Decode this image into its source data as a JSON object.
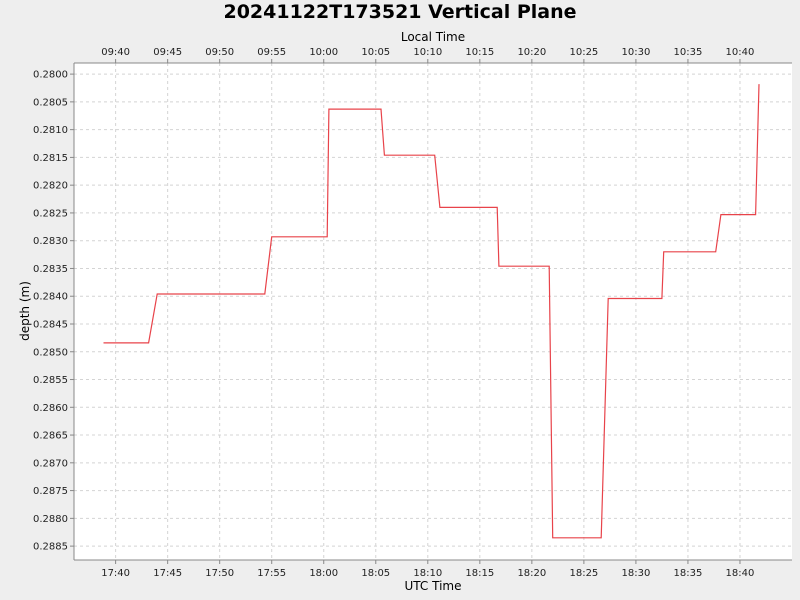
{
  "chart_data": {
    "type": "line",
    "title": "20241122T173521 Vertical Plane",
    "xlabel": "UTC Time",
    "x2label": "Local Time",
    "ylabel": "depth (m)",
    "y_inverted": true,
    "ylim": [
      0.2798,
      0.28875
    ],
    "xlim": [
      "17:36",
      "18:45"
    ],
    "x_ticks": [
      "17:40",
      "17:45",
      "17:50",
      "17:55",
      "18:00",
      "18:05",
      "18:10",
      "18:15",
      "18:20",
      "18:25",
      "18:30",
      "18:35",
      "18:40"
    ],
    "x2_ticks": [
      "09:40",
      "09:45",
      "09:50",
      "09:55",
      "10:00",
      "10:05",
      "10:10",
      "10:15",
      "10:20",
      "10:25",
      "10:30",
      "10:35",
      "10:40"
    ],
    "y_ticks": [
      "0.2800",
      "0.2805",
      "0.2810",
      "0.2815",
      "0.2820",
      "0.2825",
      "0.2830",
      "0.2835",
      "0.2840",
      "0.2845",
      "0.2850",
      "0.2855",
      "0.2860",
      "0.2865",
      "0.2870",
      "0.2875",
      "0.2880",
      "0.2885"
    ],
    "grid": true,
    "series": [
      {
        "color": "#e8434a",
        "x": [
          "17:38:50",
          "17:43:10",
          "17:44:00",
          "17:54:20",
          "17:55:00",
          "18:00:20",
          "18:00:30",
          "18:05:30",
          "18:05:50",
          "18:10:40",
          "18:11:10",
          "18:16:40",
          "18:16:50",
          "18:21:40",
          "18:22:00",
          "18:26:40",
          "18:27:20",
          "18:32:30",
          "18:32:40",
          "18:37:40",
          "18:38:10",
          "18:41:30",
          "18:41:50"
        ],
        "y": [
          0.28484,
          0.28484,
          0.28396,
          0.28396,
          0.28293,
          0.28293,
          0.28063,
          0.28063,
          0.28146,
          0.28146,
          0.2824,
          0.2824,
          0.28346,
          0.28346,
          0.28835,
          0.28835,
          0.28404,
          0.28404,
          0.2832,
          0.2832,
          0.28253,
          0.28253,
          0.28018
        ]
      }
    ]
  }
}
